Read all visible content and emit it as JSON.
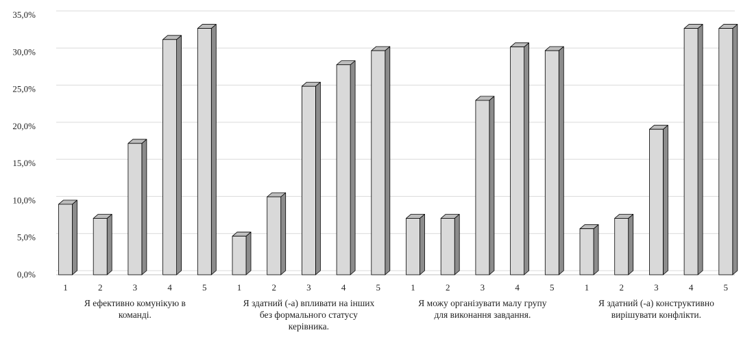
{
  "chart_data": {
    "type": "bar",
    "style": "3d-bar",
    "ylim": [
      0,
      35
    ],
    "y_step": 5,
    "y_tick_labels": [
      "0,0%",
      "5,0%",
      "10,0%",
      "15,0%",
      "20,0%",
      "25,0%",
      "30,0%",
      "35,0%"
    ],
    "grid": "horizontal",
    "bar_color": "#d9d9d9",
    "bar_side_color": "#8c8c8c",
    "groups": [
      {
        "label_lines": [
          "Я ефективно комунікую в",
          "команді."
        ],
        "categories": [
          "1",
          "2",
          "3",
          "4",
          "5"
        ],
        "values": [
          9.5,
          7.6,
          17.7,
          31.7,
          33.2
        ]
      },
      {
        "label_lines": [
          "Я здатний (-а) впливати на інших",
          "без формального статусу",
          "керівника."
        ],
        "categories": [
          "1",
          "2",
          "3",
          "4",
          "5"
        ],
        "values": [
          5.2,
          10.5,
          25.4,
          28.3,
          30.2
        ]
      },
      {
        "label_lines": [
          "Я можу організувати малу групу",
          "для виконання завдання."
        ],
        "categories": [
          "1",
          "2",
          "3",
          "4",
          "5"
        ],
        "values": [
          7.6,
          7.6,
          23.5,
          30.7,
          30.2
        ]
      },
      {
        "label_lines": [
          "Я здатний (-а) конструктивно",
          "вирішувати конфлікти."
        ],
        "categories": [
          "1",
          "2",
          "3",
          "4",
          "5"
        ],
        "values": [
          6.2,
          7.6,
          19.6,
          33.2,
          33.2
        ]
      }
    ]
  }
}
